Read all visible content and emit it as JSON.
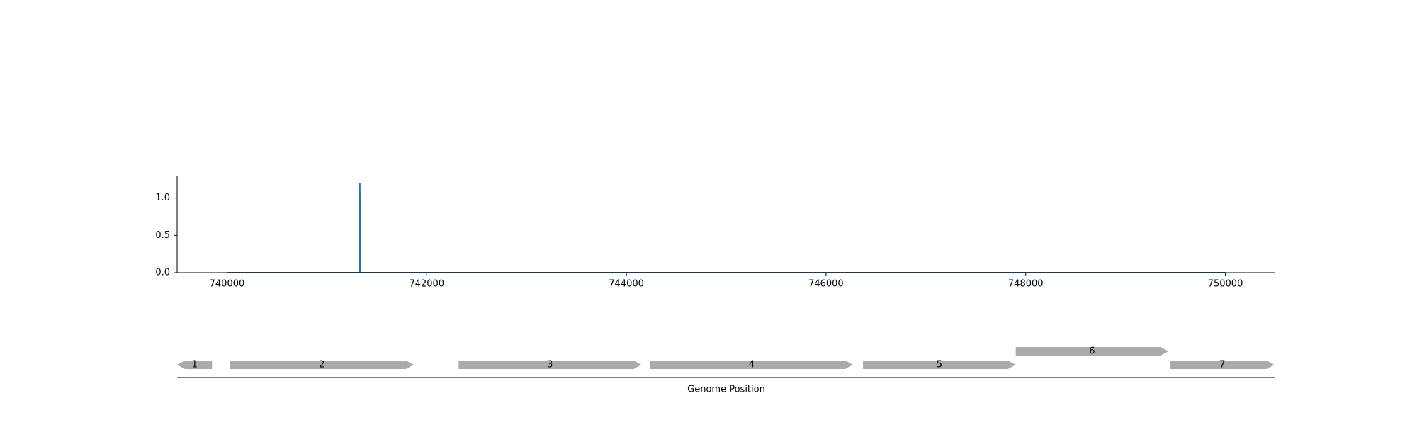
{
  "chart_data": [
    {
      "type": "line",
      "title": "",
      "xlabel": "",
      "ylabel": "",
      "xlim": [
        739500,
        750500
      ],
      "ylim": [
        0,
        1.3
      ],
      "x_ticks": [
        740000,
        742000,
        744000,
        746000,
        748000,
        750000
      ],
      "x_tick_labels": [
        "740000",
        "742000",
        "744000",
        "746000",
        "748000",
        "750000"
      ],
      "y_ticks": [
        0.0,
        0.5,
        1.0
      ],
      "y_tick_labels": [
        "0.0",
        "0.5",
        "1.0"
      ],
      "grid": false,
      "color": "#1f77b4",
      "series": [
        {
          "x": [
            740000,
            741325,
            741330,
            741335,
            750000
          ],
          "y": [
            0,
            0,
            1.2,
            0,
            0
          ]
        }
      ]
    },
    {
      "type": "gene_map",
      "xlabel": "Genome Position",
      "xlim": [
        739500,
        750500
      ],
      "gene_color": "#aaaaaa",
      "genes": [
        {
          "label": "1",
          "start": 739500,
          "end": 739850,
          "strand": "-",
          "row": 0
        },
        {
          "label": "2",
          "start": 740030,
          "end": 741870,
          "strand": "+",
          "row": 0
        },
        {
          "label": "3",
          "start": 742320,
          "end": 744150,
          "strand": "+",
          "row": 0
        },
        {
          "label": "4",
          "start": 744240,
          "end": 746270,
          "strand": "+",
          "row": 0
        },
        {
          "label": "5",
          "start": 746370,
          "end": 747900,
          "strand": "+",
          "row": 0
        },
        {
          "label": "6",
          "start": 747900,
          "end": 749430,
          "strand": "+",
          "row": 1
        },
        {
          "label": "7",
          "start": 749450,
          "end": 750490,
          "strand": "+",
          "row": 0
        }
      ]
    }
  ]
}
